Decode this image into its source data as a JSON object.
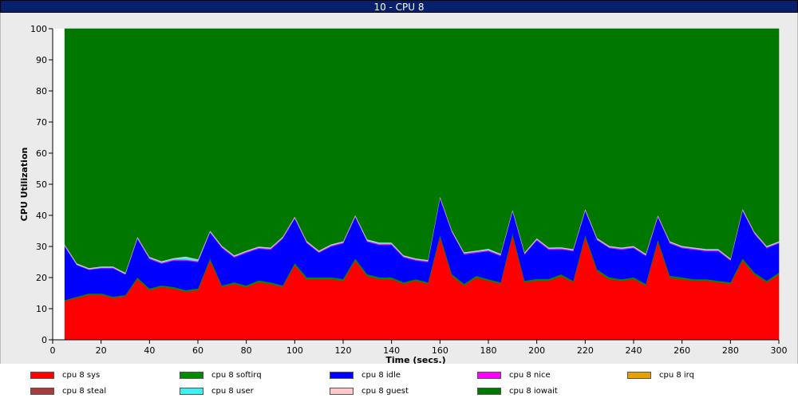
{
  "window": {
    "title": "10 - CPU 8"
  },
  "chart_data": {
    "type": "area",
    "stacked": true,
    "xlabel": "Time (secs.)",
    "ylabel": "CPU Utilization",
    "xlim": [
      0,
      300
    ],
    "ylim": [
      0,
      100
    ],
    "x_ticks": [
      0,
      20,
      40,
      60,
      80,
      100,
      120,
      140,
      160,
      180,
      200,
      220,
      240,
      260,
      280,
      300
    ],
    "y_ticks": [
      0,
      10,
      20,
      30,
      40,
      50,
      60,
      70,
      80,
      90,
      100
    ],
    "grid": false,
    "legend_position": "bottom",
    "x": [
      5,
      10,
      15,
      20,
      25,
      30,
      35,
      40,
      45,
      50,
      55,
      60,
      65,
      70,
      75,
      80,
      85,
      90,
      95,
      100,
      105,
      110,
      115,
      120,
      125,
      130,
      135,
      140,
      145,
      150,
      155,
      160,
      165,
      170,
      175,
      180,
      185,
      190,
      195,
      200,
      205,
      210,
      215,
      220,
      225,
      230,
      235,
      240,
      245,
      250,
      255,
      260,
      265,
      270,
      275,
      280,
      285,
      290,
      295,
      300
    ],
    "series": [
      {
        "name": "cpu 8 sys",
        "color": "#ff0000",
        "values": [
          12.5,
          13.5,
          14.5,
          14.5,
          13.5,
          14,
          19.5,
          16,
          17,
          16.5,
          15.5,
          16,
          25.5,
          17,
          18,
          17,
          18.5,
          18,
          17,
          24,
          19.5,
          19.5,
          19.5,
          19,
          25.5,
          20.5,
          19.5,
          19.5,
          18,
          19,
          18,
          33,
          20.5,
          17.5,
          20,
          19,
          18,
          33.5,
          18.5,
          19,
          19,
          20.5,
          18.5,
          33,
          22,
          19.5,
          19,
          19.5,
          17.5,
          31.5,
          20,
          19.5,
          19,
          19,
          18.5,
          18,
          25.5,
          21,
          18.5,
          21
        ]
      },
      {
        "name": "cpu 8 softirq",
        "color": "#008c00",
        "values": [
          0.3,
          0.4,
          0.4,
          0.4,
          0.4,
          0.4,
          0.6,
          0.5,
          0.5,
          0.5,
          0.5,
          0.5,
          0.7,
          0.5,
          0.5,
          0.5,
          0.6,
          0.5,
          0.5,
          0.7,
          0.6,
          0.6,
          0.6,
          0.6,
          0.7,
          0.6,
          0.6,
          0.6,
          0.5,
          0.5,
          0.5,
          0.8,
          0.6,
          0.5,
          0.6,
          0.5,
          0.5,
          0.8,
          0.5,
          0.6,
          0.6,
          0.6,
          0.5,
          0.8,
          0.6,
          0.6,
          0.5,
          0.6,
          0.5,
          0.8,
          0.6,
          0.6,
          0.5,
          0.5,
          0.5,
          0.5,
          0.7,
          0.6,
          0.5,
          0.6
        ]
      },
      {
        "name": "cpu 8 idle",
        "color": "#0000ff",
        "values": [
          17.2,
          10.1,
          7.6,
          8.1,
          9.1,
          6.6,
          12.4,
          9.5,
          7,
          8.5,
          9.5,
          8.5,
          8.3,
          12,
          8,
          10.5,
          10.2,
          10.5,
          15,
          14.3,
          11,
          7.9,
          9.9,
          11.4,
          13.3,
          10.4,
          10.4,
          10.4,
          8,
          6,
          6.5,
          11.7,
          13.4,
          9.5,
          7.4,
          9,
          8.5,
          7,
          8.5,
          12.4,
          9.4,
          8,
          9.5,
          7.7,
          9.4,
          9.4,
          9.5,
          9.4,
          9,
          7.2,
          10.4,
          9.4,
          9.5,
          9,
          9.5,
          7,
          15.3,
          12.4,
          10.5,
          9.4
        ]
      },
      {
        "name": "cpu 8 nice",
        "color": "#ff00ff",
        "values": [
          0.3,
          0.2,
          0.2,
          0.2,
          0.2,
          0.2,
          0.3,
          0.3,
          0.3,
          0.3,
          0.3,
          0.3,
          0.3,
          0.3,
          0.3,
          0.3,
          0.3,
          0.3,
          0.3,
          0.3,
          0.3,
          0.3,
          0.3,
          0.3,
          0.3,
          0.3,
          0.3,
          0.3,
          0.3,
          0.3,
          0.3,
          0.3,
          0.3,
          0.3,
          0.3,
          0.3,
          0.3,
          0.3,
          0.3,
          0.3,
          0.3,
          0.3,
          0.3,
          0.3,
          0.3,
          0.3,
          0.3,
          0.3,
          0.3,
          0.3,
          0.3,
          0.3,
          0.3,
          0.3,
          0.3,
          0.3,
          0.3,
          0.3,
          0.3,
          0.3
        ]
      },
      {
        "name": "cpu 8 irq",
        "color": "#e8a000",
        "values": [
          0,
          0,
          0,
          0,
          0,
          0,
          0,
          0,
          0,
          0,
          0,
          0,
          0,
          0,
          0,
          0,
          0,
          0,
          0,
          0,
          0,
          0,
          0,
          0,
          0,
          0,
          0,
          0,
          0,
          0,
          0,
          0,
          0,
          0,
          0,
          0,
          0,
          0,
          0,
          0,
          0,
          0,
          0,
          0,
          0,
          0,
          0,
          0,
          0,
          0,
          0,
          0,
          0,
          0,
          0,
          0,
          0,
          0,
          0,
          0
        ]
      },
      {
        "name": "cpu 8 steal",
        "color": "#a83c3c",
        "values": [
          0,
          0,
          0,
          0,
          0,
          0,
          0,
          0,
          0,
          0,
          0,
          0,
          0,
          0,
          0,
          0,
          0,
          0,
          0,
          0,
          0,
          0,
          0,
          0,
          0,
          0,
          0,
          0,
          0,
          0,
          0,
          0,
          0,
          0,
          0,
          0,
          0,
          0,
          0,
          0,
          0,
          0,
          0,
          0,
          0,
          0,
          0,
          0,
          0,
          0,
          0,
          0,
          0,
          0,
          0,
          0,
          0,
          0,
          0,
          0
        ]
      },
      {
        "name": "cpu 8 user",
        "color": "#40f0f0",
        "values": [
          0.2,
          0.2,
          0.2,
          0.2,
          0.2,
          0.2,
          0.2,
          0.2,
          0.3,
          0.3,
          0.8,
          0.4,
          0.2,
          0.2,
          0.2,
          0.2,
          0.2,
          0.2,
          0.2,
          0.2,
          0.2,
          0.2,
          0.2,
          0.2,
          0.2,
          0.3,
          0.3,
          0.3,
          0.2,
          0.2,
          0.2,
          0.2,
          0.2,
          0.2,
          0.2,
          0.3,
          0.2,
          0.2,
          0.2,
          0.2,
          0.2,
          0.2,
          0.2,
          0.2,
          0.2,
          0.2,
          0.2,
          0.2,
          0.2,
          0.2,
          0.2,
          0.2,
          0.2,
          0.2,
          0.2,
          0.2,
          0.2,
          0.2,
          0.2,
          0.2
        ]
      },
      {
        "name": "cpu 8 guest",
        "color": "#ffc8c8",
        "values": [
          0.2,
          0.2,
          0.2,
          0.2,
          0.2,
          0.2,
          0.2,
          0.2,
          0.2,
          0.2,
          0.2,
          0.2,
          0.2,
          0.2,
          0.2,
          0.2,
          0.2,
          0.2,
          0.2,
          0.2,
          0.2,
          0.2,
          0.2,
          0.2,
          0.2,
          0.2,
          0.2,
          0.2,
          0.2,
          0.2,
          0.2,
          0.2,
          0.2,
          0.2,
          0.2,
          0.2,
          0.2,
          0.2,
          0.2,
          0.2,
          0.2,
          0.2,
          0.2,
          0.2,
          0.2,
          0.2,
          0.2,
          0.2,
          0.2,
          0.2,
          0.2,
          0.2,
          0.2,
          0.2,
          0.2,
          0.2,
          0.2,
          0.2,
          0.2,
          0.2
        ]
      },
      {
        "name": "cpu 8 iowait",
        "color": "#007800",
        "values": [
          69.3,
          75.4,
          76.9,
          76.4,
          76.6,
          78.4,
          66.8,
          73.3,
          74.7,
          73.7,
          73.2,
          74.1,
          64.8,
          69.8,
          72.8,
          71.3,
          70,
          70.3,
          66.8,
          60.3,
          68.2,
          71.5,
          69.3,
          68.3,
          59.8,
          68,
          69,
          69,
          72.8,
          74,
          74.6,
          54.4,
          64.8,
          71.8,
          71.3,
          70.7,
          72.3,
          58,
          72,
          67.3,
          70.3,
          70.4,
          70.8,
          58.4,
          68.3,
          70,
          70.5,
          70,
          72.5,
          60,
          68.5,
          70,
          70.6,
          71.2,
          71,
          74,
          58,
          65.5,
          70,
          68.3
        ]
      }
    ]
  }
}
